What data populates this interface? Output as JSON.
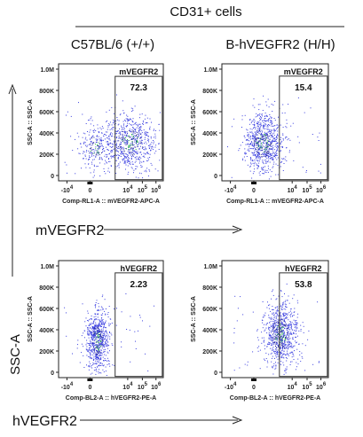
{
  "figure": {
    "header": "CD31+ cells",
    "col_titles": [
      "C57BL/6 (+/+)",
      "B-hVEGFR2 (H/H)"
    ],
    "row_labels": [
      "mVEGFR2",
      "hVEGFR2"
    ],
    "side_label": "SSC-A"
  },
  "chart_data": [
    {
      "type": "scatter",
      "title": "C57BL/6 (+/+)",
      "xlabel": "Comp-RL1-A :: mVEGFR2-APC-A",
      "ylabel": "SSC-A :: SSC-A",
      "yticks": [
        "1.0M",
        "800K",
        "600K",
        "400K",
        "200K",
        "0"
      ],
      "xticks": [
        "-10^4",
        "0",
        "10^4",
        "10^5",
        "10^6"
      ],
      "gate": {
        "label": "mVEGFR2",
        "percent": "72.3"
      },
      "population": {
        "x_center": 0.68,
        "y_center": 0.33,
        "spread_x": 0.13,
        "spread_y": 0.12,
        "n": 700,
        "secondary": {
          "x_center": 0.35,
          "y_center": 0.28,
          "n": 200
        }
      },
      "point_color": "#3a3fe0"
    },
    {
      "type": "scatter",
      "title": "B-hVEGFR2 (H/H)",
      "xlabel": "Comp-RL1-A :: mVEGFR2-APC-A",
      "ylabel": "SSC-A :: SSC-A",
      "yticks": [
        "1.0M",
        "800K",
        "600K",
        "400K",
        "200K",
        "0"
      ],
      "xticks": [
        "-10^4",
        "0",
        "10^4",
        "10^5",
        "10^6"
      ],
      "gate": {
        "label": "mVEGFR2",
        "percent": "15.4"
      },
      "population": {
        "x_center": 0.38,
        "y_center": 0.33,
        "spread_x": 0.09,
        "spread_y": 0.13,
        "n": 800
      },
      "point_color": "#3a3fe0"
    },
    {
      "type": "scatter",
      "title": "",
      "xlabel": "Comp-BL2-A :: hVEGFR2-PE-A",
      "ylabel": "SSC-A :: SSC-A",
      "yticks": [
        "1.0M",
        "800K",
        "600K",
        "400K",
        "200K",
        "0"
      ],
      "xticks": [
        "-10^4",
        "0",
        "10^4",
        "10^5",
        "10^6"
      ],
      "gate": {
        "label": "hVEGFR2",
        "percent": "2.23"
      },
      "population": {
        "x_center": 0.37,
        "y_center": 0.32,
        "spread_x": 0.055,
        "spread_y": 0.13,
        "n": 700
      },
      "point_color": "#3a3fe0"
    },
    {
      "type": "scatter",
      "title": "",
      "xlabel": "Comp-BL2-A :: hVEGFR2-PE-A",
      "ylabel": "SSC-A :: SSC-A",
      "yticks": [
        "1.0M",
        "800K",
        "600K",
        "400K",
        "200K",
        "0"
      ],
      "xticks": [
        "-10^4",
        "0",
        "10^4",
        "10^5",
        "10^6"
      ],
      "gate": {
        "label": "hVEGFR2",
        "percent": "53.8"
      },
      "population": {
        "x_center": 0.55,
        "y_center": 0.37,
        "spread_x": 0.08,
        "spread_y": 0.14,
        "n": 800
      },
      "point_color": "#3a3fe0"
    }
  ]
}
